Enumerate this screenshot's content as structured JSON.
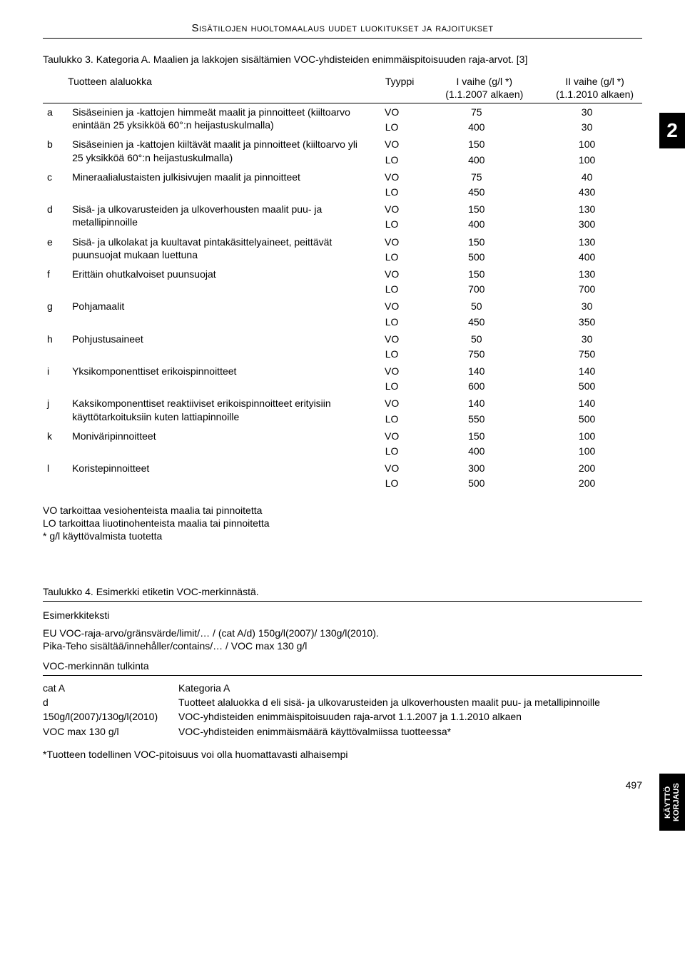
{
  "header": "Sisätilojen huoltomaalaus uudet luokitukset ja rajoitukset",
  "side_tab_number": "2",
  "side_tab_label": "KÄYTTÖ\nKORJAUS",
  "page_number": "497",
  "table3": {
    "caption": "Taulukko 3. Kategoria A. Maalien ja lakkojen sisältämien VOC-yhdisteiden enimmäispitoisuuden raja-arvot. [3]",
    "head": {
      "c1": "Tuotteen alaluokka",
      "c2": "Tyyppi",
      "c3a": "I vaihe (g/l *)",
      "c3b": "(1.1.2007 alkaen)",
      "c4a": "II vaihe (g/l *)",
      "c4b": "(1.1.2010 alkaen)"
    },
    "rows": [
      {
        "key": "a",
        "desc": "Sisäseinien ja -kattojen himmeät maalit ja pinnoitteet (kiiltoarvo enintään 25 yksikköä 60°:n heijastuskulmalla)",
        "types": [
          "VO",
          "LO"
        ],
        "v1": [
          "75",
          "400"
        ],
        "v2": [
          "30",
          "30"
        ]
      },
      {
        "key": "b",
        "desc": "Sisäseinien ja -kattojen kiiltävät maalit ja pinnoitteet (kiiltoarvo yli 25 yksikköä 60°:n heijastuskulmalla)",
        "types": [
          "VO",
          "LO"
        ],
        "v1": [
          "150",
          "400"
        ],
        "v2": [
          "100",
          "100"
        ]
      },
      {
        "key": "c",
        "desc": "Mineraalialustaisten julkisivujen maalit ja pinnoitteet",
        "types": [
          "VO",
          "LO"
        ],
        "v1": [
          "75",
          "450"
        ],
        "v2": [
          "40",
          "430"
        ]
      },
      {
        "key": "d",
        "desc": "Sisä- ja ulkovarusteiden ja ulkoverhousten maalit puu- ja metallipinnoille",
        "types": [
          "VO",
          "LO"
        ],
        "v1": [
          "150",
          "400"
        ],
        "v2": [
          "130",
          "300"
        ]
      },
      {
        "key": "e",
        "desc": "Sisä- ja ulkolakat ja kuultavat pintakäsittelyaineet, peittävät puunsuojat mukaan luettuna",
        "types": [
          "VO",
          "LO"
        ],
        "v1": [
          "150",
          "500"
        ],
        "v2": [
          "130",
          "400"
        ]
      },
      {
        "key": "f",
        "desc": "Erittäin ohutkalvoiset puunsuojat",
        "types": [
          "VO",
          "LO"
        ],
        "v1": [
          "150",
          "700"
        ],
        "v2": [
          "130",
          "700"
        ]
      },
      {
        "key": "g",
        "desc": "Pohjamaalit",
        "types": [
          "VO",
          "LO"
        ],
        "v1": [
          "50",
          "450"
        ],
        "v2": [
          "30",
          "350"
        ]
      },
      {
        "key": "h",
        "desc": "Pohjustusaineet",
        "types": [
          "VO",
          "LO"
        ],
        "v1": [
          "50",
          "750"
        ],
        "v2": [
          "30",
          "750"
        ]
      },
      {
        "key": "i",
        "desc": "Yksikomponenttiset erikoispinnoitteet",
        "types": [
          "VO",
          "LO"
        ],
        "v1": [
          "140",
          "600"
        ],
        "v2": [
          "140",
          "500"
        ]
      },
      {
        "key": "j",
        "desc": "Kaksikomponenttiset reaktiiviset erikoispinnoitteet erityisiin käyttötarkoituksiin kuten lattiapinnoille",
        "types": [
          "VO",
          "LO"
        ],
        "v1": [
          "140",
          "550"
        ],
        "v2": [
          "140",
          "500"
        ]
      },
      {
        "key": "k",
        "desc": "Moniväripinnoitteet",
        "types": [
          "VO",
          "LO"
        ],
        "v1": [
          "150",
          "400"
        ],
        "v2": [
          "100",
          "100"
        ]
      },
      {
        "key": "l",
        "desc": "Koristepinnoitteet",
        "types": [
          "VO",
          "LO"
        ],
        "v1": [
          "300",
          "500"
        ],
        "v2": [
          "200",
          "200"
        ]
      }
    ],
    "notes": [
      "VO tarkoittaa vesiohenteista maalia tai pinnoitetta",
      "LO tarkoittaa liuotinohenteista maalia tai pinnoitetta",
      "* g/l käyttövalmista tuotetta"
    ]
  },
  "table4": {
    "caption": "Taulukko 4. Esimerkki etiketin VOC-merkinnästä.",
    "example_label": "Esimerkkiteksti",
    "example_lines": [
      "EU VOC-raja-arvo/gränsvärde/limit/… / (cat A/d) 150g/l(2007)/ 130g/l(2010).",
      "Pika-Teho sisältää/innehåller/contains/… / VOC  max 130 g/l"
    ],
    "interp_label": "VOC-merkinnän tulkinta",
    "rows": [
      {
        "k": "cat A",
        "v": "Kategoria A"
      },
      {
        "k": "d",
        "v": "Tuotteet alaluokka d eli sisä- ja ulkovarusteiden ja ulkoverhousten maalit puu- ja metallipinnoille"
      },
      {
        "k": "150g/l(2007)/130g/l(2010)",
        "v": "VOC-yhdisteiden enimmäispitoisuuden raja-arvot 1.1.2007 ja 1.1.2010 alkaen"
      },
      {
        "k": "VOC max 130 g/l",
        "v": "VOC-yhdisteiden enimmäismäärä käyttövalmiissa tuotteessa*"
      }
    ],
    "footnote": "*Tuotteen todellinen VOC-pitoisuus voi olla huomattavasti alhaisempi"
  }
}
